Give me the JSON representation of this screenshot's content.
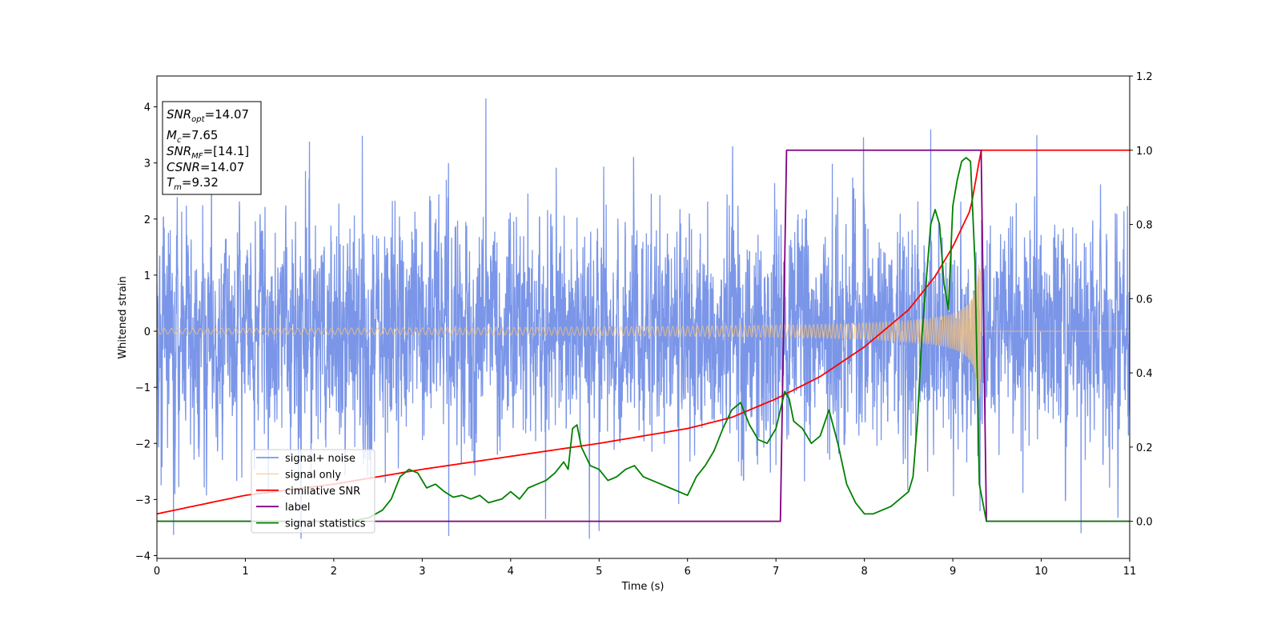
{
  "chart_data": {
    "type": "line",
    "xlabel": "Time (s)",
    "ylabel": "Whitened strain",
    "xlim": [
      0,
      11
    ],
    "ylim_left": [
      -4.05,
      4.55
    ],
    "ylim_right": [
      -0.1,
      1.2
    ],
    "x_ticks": [
      0,
      1,
      2,
      3,
      4,
      5,
      6,
      7,
      8,
      9,
      10,
      11
    ],
    "y_ticks_left": [
      -4,
      -3,
      -2,
      -1,
      0,
      1,
      2,
      3,
      4
    ],
    "y_ticks_right": [
      0.0,
      0.2,
      0.4,
      0.6,
      0.8,
      1.0,
      1.2
    ],
    "x_tick_labels": [
      "0",
      "1",
      "2",
      "3",
      "4",
      "5",
      "6",
      "7",
      "8",
      "9",
      "10",
      "11"
    ],
    "y_tick_labels_left": [
      "−4",
      "−3",
      "−2",
      "−1",
      "0",
      "1",
      "2",
      "3",
      "4"
    ],
    "y_tick_labels_right": [
      "0.0",
      "0.2",
      "0.4",
      "0.6",
      "0.8",
      "1.0",
      "1.2"
    ],
    "grid": false,
    "legend_position": "bottom-left",
    "info_box": {
      "lines": [
        {
          "main": "SNR",
          "sub": "opt",
          "value": "=14.07"
        },
        {
          "main": "M",
          "sub": "c",
          "value": "=7.65"
        },
        {
          "main": "SNR",
          "sub": "MF",
          "value": "=[14.1]"
        },
        {
          "main": "CSNR",
          "sub": "",
          "value": "=14.07"
        },
        {
          "main": "T",
          "sub": "m",
          "value": "=9.32"
        }
      ]
    },
    "series": [
      {
        "name": "signal+ noise",
        "axis": "left",
        "color": "#7b96e8",
        "kind": "noise",
        "note_values": "dense whitened noise, amplitude mostly within about ±2.5 with spikes to 4.2 near x=3.7 and -3.7 near x=3.3",
        "typical_amplitude": 1.0,
        "x_range": [
          0,
          11
        ]
      },
      {
        "name": "signal only",
        "axis": "left",
        "color": "#f5c27a",
        "kind": "chirp",
        "t_merger": 9.32,
        "amplitude_start": 0.05,
        "amplitude_at_merger": 1.2
      },
      {
        "name": "cimilative SNR",
        "axis": "right",
        "color": "#ff0000",
        "x": [
          0,
          1,
          2,
          3,
          4,
          5,
          6,
          6.5,
          7,
          7.5,
          8,
          8.5,
          8.8,
          9,
          9.2,
          9.32,
          11
        ],
        "y": [
          0.02,
          0.07,
          0.1,
          0.14,
          0.175,
          0.21,
          0.25,
          0.28,
          0.33,
          0.39,
          0.47,
          0.57,
          0.66,
          0.74,
          0.84,
          1.0,
          1.0
        ]
      },
      {
        "name": "label",
        "axis": "right",
        "color": "#800080",
        "x": [
          0,
          7.05,
          7.12,
          9.32,
          9.38,
          11
        ],
        "y": [
          0.0,
          0.0,
          1.0,
          1.0,
          0.0,
          0.0
        ]
      },
      {
        "name": "signal statistics",
        "axis": "right",
        "color": "#008000",
        "x": [
          0,
          2.2,
          2.4,
          2.55,
          2.65,
          2.75,
          2.85,
          2.95,
          3.05,
          3.15,
          3.25,
          3.35,
          3.45,
          3.55,
          3.65,
          3.75,
          3.9,
          4.0,
          4.1,
          4.2,
          4.3,
          4.4,
          4.5,
          4.6,
          4.65,
          4.7,
          4.75,
          4.8,
          4.9,
          5.0,
          5.1,
          5.2,
          5.3,
          5.4,
          5.5,
          5.6,
          5.7,
          5.8,
          5.9,
          6.0,
          6.1,
          6.2,
          6.3,
          6.4,
          6.5,
          6.6,
          6.7,
          6.8,
          6.9,
          7.0,
          7.1,
          7.15,
          7.2,
          7.3,
          7.4,
          7.5,
          7.6,
          7.7,
          7.8,
          7.9,
          8.0,
          8.1,
          8.2,
          8.3,
          8.4,
          8.5,
          8.55,
          8.6,
          8.65,
          8.7,
          8.75,
          8.8,
          8.85,
          8.9,
          8.95,
          9.0,
          9.05,
          9.1,
          9.15,
          9.2,
          9.25,
          9.3,
          9.38,
          11
        ],
        "y": [
          0.0,
          0.0,
          0.01,
          0.03,
          0.06,
          0.12,
          0.14,
          0.13,
          0.09,
          0.1,
          0.08,
          0.065,
          0.07,
          0.06,
          0.07,
          0.05,
          0.06,
          0.08,
          0.06,
          0.09,
          0.1,
          0.11,
          0.13,
          0.16,
          0.14,
          0.25,
          0.26,
          0.2,
          0.15,
          0.14,
          0.11,
          0.12,
          0.14,
          0.15,
          0.12,
          0.11,
          0.1,
          0.09,
          0.08,
          0.07,
          0.12,
          0.15,
          0.19,
          0.25,
          0.3,
          0.32,
          0.26,
          0.22,
          0.21,
          0.25,
          0.35,
          0.33,
          0.27,
          0.25,
          0.21,
          0.23,
          0.3,
          0.21,
          0.1,
          0.05,
          0.02,
          0.02,
          0.03,
          0.04,
          0.06,
          0.08,
          0.12,
          0.27,
          0.5,
          0.65,
          0.8,
          0.84,
          0.8,
          0.64,
          0.57,
          0.85,
          0.92,
          0.97,
          0.98,
          0.97,
          0.7,
          0.1,
          0.0,
          0.0
        ]
      }
    ]
  }
}
